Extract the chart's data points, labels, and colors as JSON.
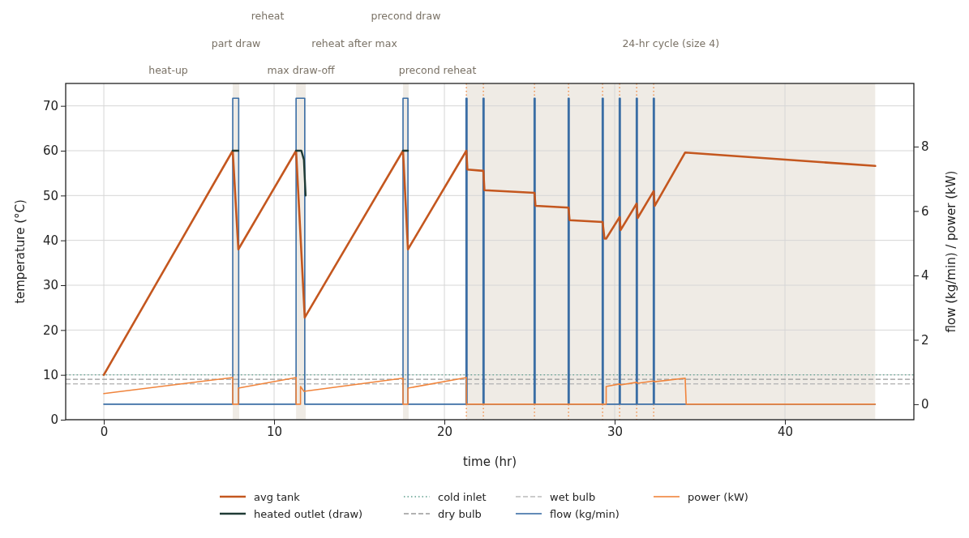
{
  "chart_data": {
    "type": "line",
    "xlabel": "time (hr)",
    "ylabel": "temperature (°C)",
    "y2label": "flow (kg/min)  /  power (kW)",
    "xlim": [
      -2.24,
      47.57
    ],
    "xticks": [
      0,
      10,
      20,
      30,
      40
    ],
    "ylim": [
      0,
      75
    ],
    "yticks": [
      0,
      10,
      20,
      30,
      40,
      50,
      60,
      70
    ],
    "y2lim": [
      -0.48,
      9.96
    ],
    "y2ticks": [
      0,
      2,
      4,
      6,
      8
    ],
    "grid": true,
    "legend": "bottom",
    "series": [
      {
        "name": "avg tank",
        "color": "#c4571f",
        "x": [
          0,
          7.57,
          7.9,
          11.29,
          11.8,
          17.57,
          17.86,
          21.29,
          21.35,
          22.29,
          22.35,
          25.29,
          25.35,
          27.29,
          27.35,
          29.29,
          29.4,
          29.5,
          30.29,
          30.35,
          31.29,
          31.35,
          32.29,
          32.35,
          34.14,
          45.3
        ],
        "values": [
          10,
          60,
          38,
          60,
          22.8,
          60,
          38,
          60,
          55.8,
          55.5,
          51.2,
          50.6,
          47.7,
          47.3,
          44.5,
          44.1,
          40.4,
          40.4,
          45.2,
          42.3,
          48.2,
          45,
          51,
          47.7,
          59.6,
          56.6
        ]
      },
      {
        "name": "heated outlet (draw)",
        "color": "#1f3b35",
        "x": [
          7.57,
          7.9,
          7.95,
          11.29,
          11.6,
          11.75,
          11.85,
          11.9,
          17.57,
          17.86
        ],
        "values": [
          60,
          60,
          null,
          60,
          60,
          58,
          50,
          null,
          60,
          60
        ]
      },
      {
        "name": "flow (kg/min)",
        "color": "#3b6ea5",
        "axis": "y2",
        "x": [
          0,
          7.57,
          7.57,
          7.92,
          7.92,
          11.29,
          11.29,
          11.8,
          11.8,
          17.57,
          17.57,
          17.86,
          17.86,
          21.27,
          21.27,
          21.33,
          21.33,
          22.27,
          22.27,
          22.33,
          22.33,
          25.27,
          25.27,
          25.33,
          25.33,
          27.27,
          27.27,
          27.33,
          27.33,
          29.27,
          29.27,
          29.33,
          29.33,
          30.27,
          30.27,
          30.33,
          30.33,
          31.27,
          31.27,
          31.33,
          31.33,
          32.27,
          32.27,
          32.33,
          32.33,
          45.3
        ],
        "values": [
          0,
          0,
          9.5,
          9.5,
          0,
          0,
          9.5,
          9.5,
          0,
          0,
          9.5,
          9.5,
          0,
          0,
          9.5,
          9.5,
          0,
          0,
          9.5,
          9.5,
          0,
          0,
          9.5,
          9.5,
          0,
          0,
          9.5,
          9.5,
          0,
          0,
          9.5,
          9.5,
          0,
          0,
          9.5,
          9.5,
          0,
          0,
          9.5,
          9.5,
          0,
          0,
          9.5,
          9.5,
          0,
          0
        ]
      },
      {
        "name": "power (kW)",
        "color": "#f0843c",
        "axis": "y2",
        "x": [
          0,
          7.57,
          7.57,
          7.9,
          7.9,
          11.29,
          11.29,
          11.55,
          11.55,
          11.75,
          17.57,
          17.57,
          17.86,
          17.86,
          21.29,
          21.29,
          29.5,
          29.5,
          30.29,
          30.35,
          31.29,
          31.35,
          32.29,
          32.35,
          34.14,
          34.2,
          45.3
        ],
        "values": [
          0.33,
          0.83,
          0,
          0,
          0.5,
          0.83,
          0,
          0,
          0.55,
          0.4,
          0.81,
          0,
          0,
          0.5,
          0.83,
          0,
          0,
          0.55,
          0.63,
          0.6,
          0.68,
          0.65,
          0.72,
          0.7,
          0.81,
          0,
          0
        ]
      }
    ],
    "ref_lines": [
      {
        "axis": "y",
        "value": 10,
        "label": "cold inlet",
        "color": "#5e9e8c",
        "line_style": "dotted"
      },
      {
        "axis": "y",
        "value": 9,
        "label": "dry bulb",
        "color": "#999999",
        "line_style": "dashed"
      },
      {
        "axis": "y",
        "value": 8,
        "label": "wet bulb",
        "color": "#bbbbbb",
        "line_style": "dashed"
      },
      {
        "axis": "x",
        "value": 21.29,
        "color": "#f0843c",
        "line_style": "dotted"
      },
      {
        "axis": "x",
        "value": 22.29,
        "color": "#f0843c",
        "line_style": "dotted"
      },
      {
        "axis": "x",
        "value": 25.29,
        "color": "#f0843c",
        "line_style": "dotted"
      },
      {
        "axis": "x",
        "value": 27.29,
        "color": "#f0843c",
        "line_style": "dotted"
      },
      {
        "axis": "x",
        "value": 29.29,
        "color": "#f0843c",
        "line_style": "dotted"
      },
      {
        "axis": "x",
        "value": 30.29,
        "color": "#f0843c",
        "line_style": "dotted"
      },
      {
        "axis": "x",
        "value": 31.29,
        "color": "#f0843c",
        "line_style": "dotted"
      },
      {
        "axis": "x",
        "value": 32.29,
        "color": "#f0843c",
        "line_style": "dotted"
      }
    ],
    "bands": [
      {
        "axis": "x",
        "from": 7.57,
        "to": 7.95,
        "color": "#efebe5"
      },
      {
        "axis": "x",
        "from": 11.29,
        "to": 11.86,
        "color": "#efebe5"
      },
      {
        "axis": "x",
        "from": 17.57,
        "to": 17.9,
        "color": "#efebe5"
      },
      {
        "axis": "x",
        "from": 21.29,
        "to": 45.3,
        "color": "#efebe5"
      }
    ],
    "annotations": [
      "heat-up",
      "part draw",
      "reheat",
      "max draw-off",
      "reheat after max",
      "precond draw",
      "precond reheat",
      "24-hr cycle (size 4)"
    ]
  }
}
